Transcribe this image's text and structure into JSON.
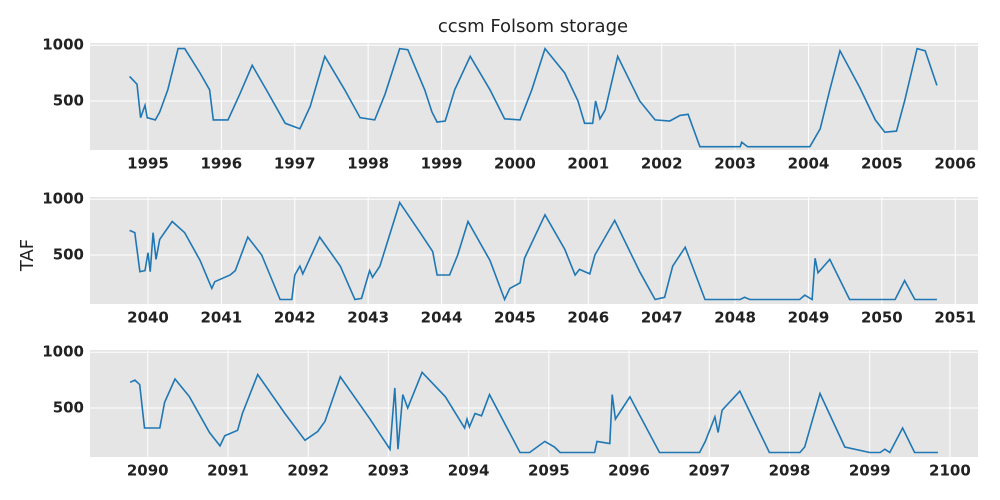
{
  "chart_data": [
    {
      "type": "line",
      "title": "ccsm Folsom storage",
      "color": "#1f77b4",
      "grid": true,
      "xlim": [
        1994.21,
        2006.31
      ],
      "xticks": [
        1995,
        1996,
        1997,
        1998,
        1999,
        2000,
        2001,
        2002,
        2003,
        2004,
        2005,
        2006
      ],
      "ylim": [
        60,
        1020
      ],
      "yticks": [
        500,
        1000
      ],
      "x": [
        1994.75,
        1994.85,
        1994.9,
        1994.96,
        1994.99,
        1995.1,
        1995.16,
        1995.27,
        1995.41,
        1995.5,
        1995.71,
        1995.84,
        1995.89,
        1996.09,
        1996.25,
        1996.42,
        1996.63,
        1996.87,
        1997.07,
        1997.21,
        1997.41,
        1997.68,
        1997.89,
        1998.09,
        1998.23,
        1998.43,
        1998.54,
        1998.77,
        1998.87,
        1998.94,
        1999.05,
        1999.18,
        1999.39,
        1999.66,
        1999.86,
        2000.07,
        2000.23,
        2000.41,
        2000.68,
        2000.86,
        2000.95,
        2001.06,
        2001.1,
        2001.16,
        2001.23,
        2001.4,
        2001.7,
        2001.91,
        2002.11,
        2002.25,
        2002.36,
        2002.52,
        2003.07,
        2003.09,
        2003.17,
        2004.02,
        2004.16,
        2004.29,
        2004.43,
        2004.7,
        2004.91,
        2005.04,
        2005.2,
        2005.31,
        2005.48,
        2005.59,
        2005.75
      ],
      "values": [
        720,
        650,
        350,
        460,
        350,
        330,
        400,
        600,
        970,
        970,
        750,
        600,
        330,
        330,
        560,
        820,
        580,
        300,
        250,
        450,
        900,
        600,
        350,
        330,
        560,
        970,
        960,
        600,
        400,
        310,
        320,
        600,
        900,
        600,
        340,
        330,
        600,
        970,
        750,
        500,
        300,
        300,
        500,
        340,
        420,
        900,
        500,
        330,
        320,
        370,
        380,
        90,
        90,
        130,
        90,
        90,
        250,
        600,
        950,
        620,
        330,
        220,
        230,
        500,
        970,
        950,
        640
      ]
    },
    {
      "type": "line",
      "ylabel": "TAF",
      "color": "#1f77b4",
      "grid": true,
      "xlim": [
        2039.21,
        2051.31
      ],
      "xticks": [
        2040,
        2041,
        2042,
        2043,
        2044,
        2045,
        2046,
        2047,
        2048,
        2049,
        2050,
        2051
      ],
      "ylim": [
        60,
        1020
      ],
      "yticks": [
        500,
        1000
      ],
      "x": [
        2039.75,
        2039.82,
        2039.89,
        2039.96,
        2040.0,
        2040.03,
        2040.07,
        2040.11,
        2040.16,
        2040.33,
        2040.5,
        2040.71,
        2040.87,
        2040.91,
        2041.12,
        2041.19,
        2041.36,
        2041.55,
        2041.8,
        2041.96,
        2042.0,
        2042.07,
        2042.11,
        2042.34,
        2042.62,
        2042.82,
        2042.91,
        2043.02,
        2043.06,
        2043.16,
        2043.43,
        2043.71,
        2043.88,
        2043.94,
        2044.11,
        2044.22,
        2044.36,
        2044.66,
        2044.86,
        2044.93,
        2045.07,
        2045.13,
        2045.41,
        2045.68,
        2045.82,
        2045.88,
        2046.02,
        2046.09,
        2046.36,
        2046.7,
        2046.91,
        2047.04,
        2047.15,
        2047.32,
        2047.59,
        2048.07,
        2048.13,
        2048.2,
        2048.88,
        2048.95,
        2049.05,
        2049.09,
        2049.13,
        2049.29,
        2049.56,
        2050.18,
        2050.31,
        2050.45,
        2050.75
      ],
      "values": [
        720,
        700,
        350,
        360,
        520,
        350,
        700,
        460,
        640,
        800,
        700,
        450,
        200,
        260,
        320,
        360,
        660,
        500,
        100,
        100,
        320,
        400,
        330,
        660,
        400,
        100,
        110,
        360,
        300,
        400,
        970,
        700,
        530,
        320,
        320,
        500,
        800,
        450,
        100,
        200,
        250,
        470,
        860,
        550,
        320,
        370,
        330,
        500,
        810,
        350,
        100,
        120,
        400,
        570,
        100,
        100,
        120,
        100,
        100,
        140,
        100,
        470,
        340,
        460,
        100,
        100,
        270,
        100,
        100
      ]
    },
    {
      "type": "line",
      "color": "#1f77b4",
      "grid": true,
      "xlim": [
        2089.28,
        2100.35
      ],
      "xticks": [
        2090,
        2091,
        2092,
        2093,
        2094,
        2095,
        2096,
        2097,
        2098,
        2099,
        2100
      ],
      "ylim": [
        60,
        1020
      ],
      "yticks": [
        500,
        1000
      ],
      "x": [
        2089.78,
        2089.84,
        2089.9,
        2089.96,
        2090.15,
        2090.21,
        2090.34,
        2090.52,
        2090.77,
        2090.9,
        2090.96,
        2091.12,
        2091.18,
        2091.37,
        2091.71,
        2091.96,
        2092.12,
        2092.21,
        2092.4,
        2092.77,
        2093.02,
        2093.08,
        2093.12,
        2093.18,
        2093.24,
        2093.42,
        2093.71,
        2093.95,
        2093.98,
        2094.01,
        2094.08,
        2094.16,
        2094.26,
        2094.64,
        2094.76,
        2094.95,
        2095.07,
        2095.14,
        2095.57,
        2095.6,
        2095.76,
        2095.79,
        2095.83,
        2096.01,
        2096.38,
        2096.88,
        2096.95,
        2097.07,
        2097.11,
        2097.16,
        2097.38,
        2097.75,
        2098.13,
        2098.19,
        2098.38,
        2098.69,
        2099.0,
        2099.13,
        2099.19,
        2099.25,
        2099.41,
        2099.56,
        2099.85
      ],
      "values": [
        730,
        750,
        710,
        320,
        320,
        550,
        760,
        600,
        280,
        160,
        250,
        300,
        450,
        800,
        450,
        210,
        290,
        380,
        780,
        400,
        130,
        680,
        130,
        620,
        500,
        820,
        600,
        320,
        400,
        330,
        450,
        430,
        620,
        100,
        100,
        200,
        150,
        100,
        100,
        200,
        180,
        620,
        400,
        600,
        100,
        100,
        200,
        420,
        280,
        480,
        650,
        100,
        100,
        150,
        630,
        150,
        100,
        100,
        130,
        100,
        320,
        100,
        100
      ]
    }
  ]
}
